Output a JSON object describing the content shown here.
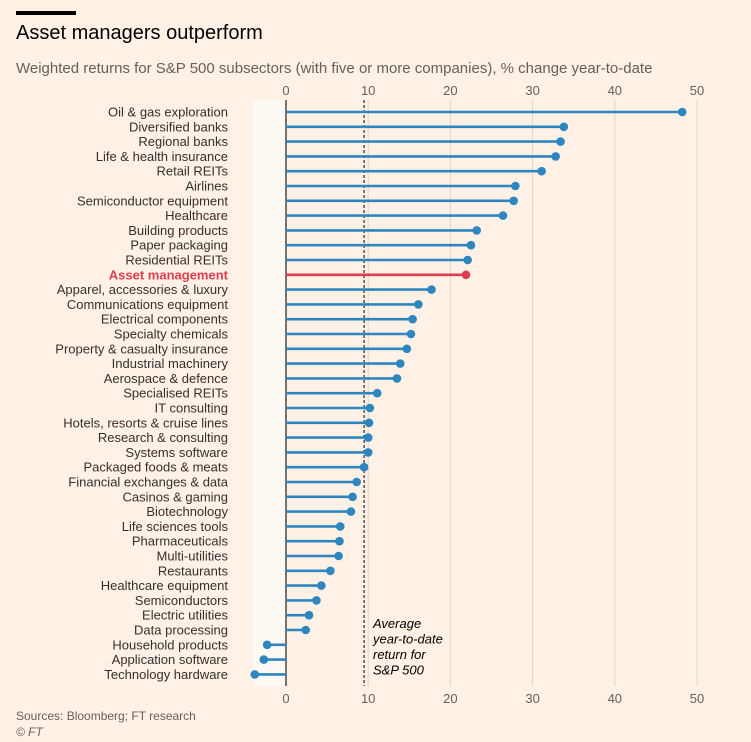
{
  "header": {
    "title": "Asset managers outperform",
    "subtitle": "Weighted returns for S&P 500 subsectors (with five or more companies), % change year-to-date"
  },
  "footer": {
    "sources": "Sources: Bloomberg; FT research",
    "copyright": "© FT"
  },
  "colors": {
    "background": "#FFF1E5",
    "bar": "#2E86C1",
    "highlight": "#E03C4F",
    "zero_band": "#FFF9F4",
    "average_line": "#000000"
  },
  "chart_data": {
    "type": "lollipop",
    "title": "Asset managers outperform",
    "subtitle": "Weighted returns for S&P 500 subsectors (with five or more companies), % change year-to-date",
    "unit": "% change year-to-date",
    "xlim": [
      -4,
      50
    ],
    "xticks": [
      0,
      10,
      20,
      30,
      40,
      50
    ],
    "highlight": "Asset management",
    "average": {
      "value": 9.5,
      "label": [
        "Average",
        "year-to-date",
        "return for",
        "S&P 500"
      ]
    },
    "categories": [
      "Oil & gas exploration",
      "Diversified banks",
      "Regional banks",
      "Life & health insurance",
      "Retail REITs",
      "Airlines",
      "Semiconductor equipment",
      "Healthcare",
      "Building products",
      "Paper packaging",
      "Residential REITs",
      "Asset management",
      "Apparel, accessories & luxury",
      "Communications equipment",
      "Electrical components",
      "Specialty chemicals",
      "Property & casualty insurance",
      "Industrial machinery",
      "Aerospace & defence",
      "Specialised REITs",
      "IT consulting",
      "Hotels, resorts & cruise lines",
      "Research & consulting",
      "Systems software",
      "Packaged foods & meats",
      "Financial exchanges & data",
      "Casinos & gaming",
      "Biotechnology",
      "Life sciences tools",
      "Pharmaceuticals",
      "Multi-utilities",
      "Restaurants",
      "Healthcare equipment",
      "Semiconductors",
      "Electric utilities",
      "Data processing",
      "Household products",
      "Application software",
      "Technology hardware"
    ],
    "values": [
      48.2,
      33.8,
      33.4,
      32.8,
      31.1,
      27.9,
      27.7,
      26.4,
      23.2,
      22.5,
      22.1,
      21.9,
      17.7,
      16.1,
      15.4,
      15.2,
      14.7,
      13.9,
      13.5,
      11.1,
      10.2,
      10.1,
      10.0,
      10.0,
      9.5,
      8.6,
      8.1,
      7.9,
      6.6,
      6.5,
      6.4,
      5.4,
      4.3,
      3.7,
      2.8,
      2.4,
      -2.3,
      -2.7,
      -3.8
    ]
  }
}
